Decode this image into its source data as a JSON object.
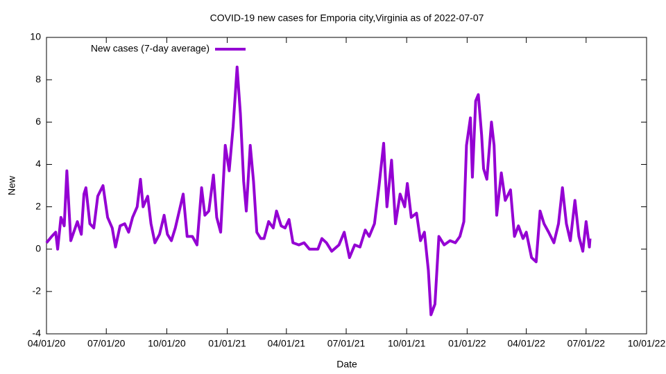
{
  "chart_data": {
    "type": "line",
    "title": "COVID-19 new cases for Emporia city,Virginia as of 2022-07-07",
    "xlabel": "Date",
    "ylabel": "New",
    "legend": "top-left",
    "xlim": [
      "2020-04-01",
      "2022-10-01"
    ],
    "xticks": [
      {
        "value": "2020-04-01",
        "label": "04/01/20"
      },
      {
        "value": "2020-07-01",
        "label": "07/01/20"
      },
      {
        "value": "2020-10-01",
        "label": "10/01/20"
      },
      {
        "value": "2021-01-01",
        "label": "01/01/21"
      },
      {
        "value": "2021-04-01",
        "label": "04/01/21"
      },
      {
        "value": "2021-07-01",
        "label": "07/01/21"
      },
      {
        "value": "2021-10-01",
        "label": "10/01/21"
      },
      {
        "value": "2022-01-01",
        "label": "01/01/22"
      },
      {
        "value": "2022-04-01",
        "label": "04/01/22"
      },
      {
        "value": "2022-07-01",
        "label": "07/01/22"
      },
      {
        "value": "2022-10-01",
        "label": "10/01/22"
      }
    ],
    "ylim": [
      -4,
      10
    ],
    "yticks": [
      -4,
      -2,
      0,
      2,
      4,
      6,
      8,
      10
    ],
    "x": [
      "2020-04-01",
      "2020-04-09",
      "2020-04-15",
      "2020-04-18",
      "2020-04-23",
      "2020-04-28",
      "2020-05-02",
      "2020-05-08",
      "2020-05-18",
      "2020-05-24",
      "2020-05-28",
      "2020-05-31",
      "2020-06-06",
      "2020-06-12",
      "2020-06-18",
      "2020-06-26",
      "2020-07-03",
      "2020-07-10",
      "2020-07-15",
      "2020-07-22",
      "2020-07-29",
      "2020-08-04",
      "2020-08-10",
      "2020-08-17",
      "2020-08-22",
      "2020-08-26",
      "2020-09-02",
      "2020-09-07",
      "2020-09-13",
      "2020-09-20",
      "2020-09-27",
      "2020-10-02",
      "2020-10-08",
      "2020-10-14",
      "2020-10-20",
      "2020-10-26",
      "2020-11-01",
      "2020-11-09",
      "2020-11-16",
      "2020-11-23",
      "2020-11-28",
      "2020-12-04",
      "2020-12-11",
      "2020-12-16",
      "2020-12-22",
      "2020-12-29",
      "2021-01-04",
      "2021-01-10",
      "2021-01-16",
      "2021-01-21",
      "2021-01-26",
      "2021-01-30",
      "2021-02-05",
      "2021-02-10",
      "2021-02-15",
      "2021-02-21",
      "2021-02-26",
      "2021-03-05",
      "2021-03-12",
      "2021-03-17",
      "2021-03-24",
      "2021-03-30",
      "2021-04-05",
      "2021-04-11",
      "2021-04-20",
      "2021-04-28",
      "2021-05-06",
      "2021-05-19",
      "2021-05-25",
      "2021-06-01",
      "2021-06-09",
      "2021-06-20",
      "2021-06-28",
      "2021-07-06",
      "2021-07-14",
      "2021-07-22",
      "2021-07-30",
      "2021-08-05",
      "2021-08-13",
      "2021-08-20",
      "2021-08-27",
      "2021-09-01",
      "2021-09-08",
      "2021-09-14",
      "2021-09-21",
      "2021-09-28",
      "2021-10-02",
      "2021-10-08",
      "2021-10-16",
      "2021-10-22",
      "2021-10-28",
      "2021-11-03",
      "2021-11-07",
      "2021-11-13",
      "2021-11-19",
      "2021-11-27",
      "2021-12-06",
      "2021-12-14",
      "2021-12-21",
      "2021-12-27",
      "2021-12-31",
      "2022-01-06",
      "2022-01-09",
      "2022-01-14",
      "2022-01-18",
      "2022-01-23",
      "2022-01-26",
      "2022-01-31",
      "2022-02-07",
      "2022-02-11",
      "2022-02-15",
      "2022-02-22",
      "2022-02-28",
      "2022-03-08",
      "2022-03-14",
      "2022-03-20",
      "2022-03-27",
      "2022-04-01",
      "2022-04-09",
      "2022-04-16",
      "2022-04-22",
      "2022-04-28",
      "2022-05-05",
      "2022-05-13",
      "2022-05-20",
      "2022-05-26",
      "2022-06-01",
      "2022-06-07",
      "2022-06-14",
      "2022-06-20",
      "2022-06-26",
      "2022-07-01",
      "2022-07-06",
      "2022-07-07"
    ],
    "series": [
      {
        "name": "New cases (7-day average)",
        "color": "#9400d3",
        "values": [
          0.3,
          0.6,
          0.8,
          0,
          1.5,
          1.1,
          3.7,
          0.4,
          1.3,
          0.7,
          2.6,
          2.9,
          1.2,
          1.0,
          2.5,
          3.0,
          1.5,
          1.0,
          0.1,
          1.1,
          1.2,
          0.8,
          1.5,
          2.0,
          3.3,
          2.0,
          2.5,
          1.2,
          0.3,
          0.7,
          1.6,
          0.7,
          0.4,
          1.0,
          1.8,
          2.6,
          0.6,
          0.6,
          0.2,
          2.9,
          1.6,
          1.8,
          3.5,
          1.5,
          0.8,
          4.9,
          3.7,
          5.8,
          8.6,
          6.4,
          3.2,
          1.8,
          4.9,
          3.2,
          0.8,
          0.5,
          0.5,
          1.3,
          1.0,
          1.8,
          1.1,
          1.0,
          1.4,
          0.3,
          0.2,
          0.3,
          0,
          0,
          0.5,
          0.3,
          -0.1,
          0.2,
          0.8,
          -0.4,
          0.2,
          0.1,
          0.9,
          0.6,
          1.2,
          3.0,
          5.0,
          2.0,
          4.2,
          1.2,
          2.6,
          2.0,
          3.1,
          1.5,
          1.7,
          0.4,
          0.8,
          -1.0,
          -3.1,
          -2.6,
          0.6,
          0.2,
          0.4,
          0.3,
          0.6,
          1.3,
          4.9,
          6.2,
          3.4,
          7.0,
          7.3,
          5.4,
          3.8,
          3.3,
          6.0,
          4.9,
          1.6,
          3.6,
          2.3,
          2.8,
          0.6,
          1.1,
          0.5,
          0.8,
          -0.4,
          -0.6,
          1.8,
          1.2,
          0.8,
          0.3,
          1.2,
          2.9,
          1.2,
          0.4,
          2.3,
          0.6,
          -0.1,
          1.3,
          0.1,
          0.5
        ]
      }
    ]
  }
}
